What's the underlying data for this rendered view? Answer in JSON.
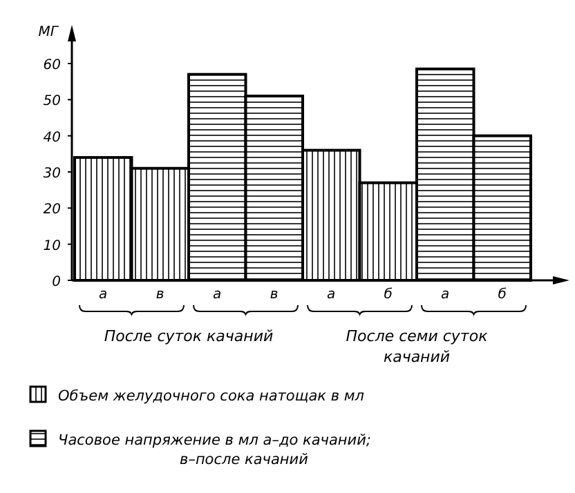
{
  "chart_data": {
    "type": "bar",
    "ylabel": "МГ",
    "categories": [
      "а",
      "в",
      "а",
      "в",
      "а",
      "б",
      "а",
      "б"
    ],
    "series": [
      {
        "name": "Объем желудочного сока натощак в мл",
        "color": "#000000",
        "values": [
          34,
          31,
          null,
          null,
          36,
          27,
          null,
          null
        ]
      },
      {
        "name": "Часовое напряжение в мл а–до качаний;\nв–после качаний",
        "color": "#000000",
        "values": [
          null,
          null,
          57,
          51,
          null,
          null,
          58.5,
          40
        ]
      }
    ],
    "ylim": [
      0,
      60
    ],
    "yticks": [
      0,
      10,
      20,
      30,
      40,
      50,
      60
    ],
    "grid": false,
    "legend": "bottom",
    "annotations": [
      "После суток качаний",
      "После семи суток\nкачаний"
    ]
  }
}
